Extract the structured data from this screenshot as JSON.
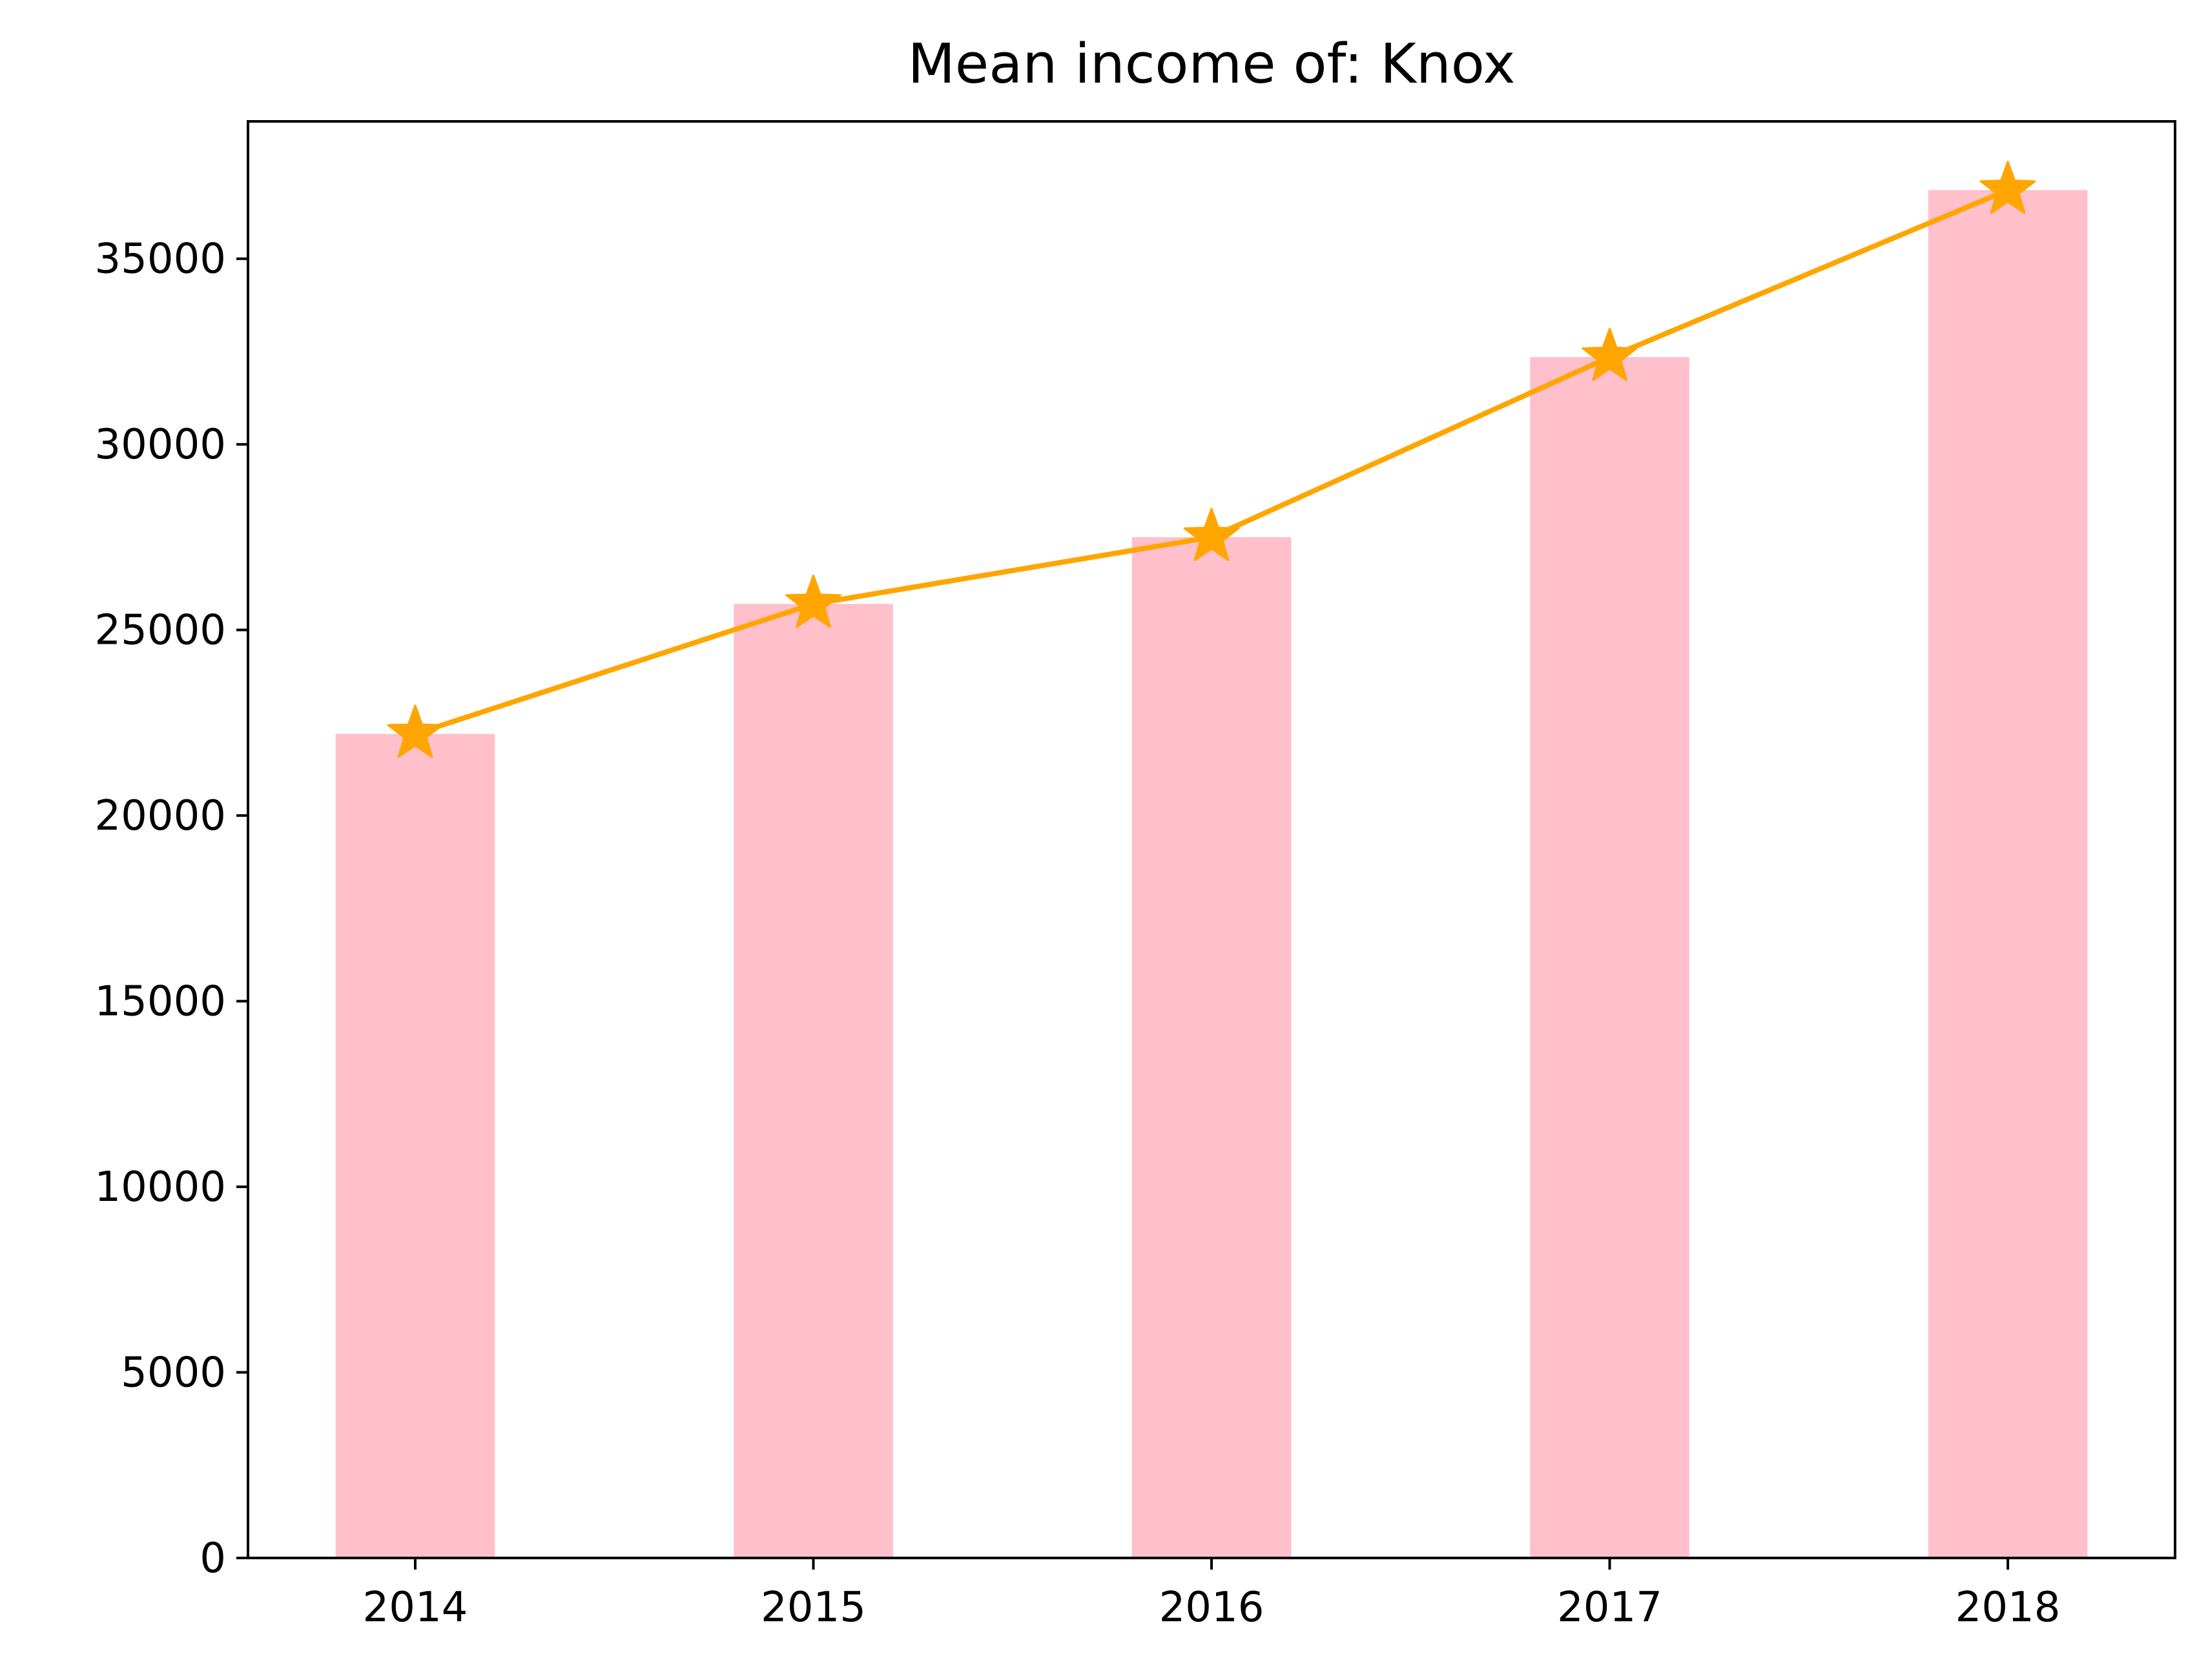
{
  "chart_data": {
    "type": "bar",
    "title": "Mean income of: Knox",
    "xlabel": "",
    "ylabel": "",
    "categories": [
      "2014",
      "2015",
      "2016",
      "2017",
      "2018"
    ],
    "series": [
      {
        "type": "bar",
        "values": [
          22200,
          25700,
          27500,
          32350,
          36850
        ]
      },
      {
        "type": "line",
        "marker": "star",
        "values": [
          22200,
          25700,
          27500,
          32350,
          36850
        ]
      }
    ],
    "ylim": [
      0,
      38700
    ],
    "yticks": [
      0,
      5000,
      10000,
      15000,
      20000,
      25000,
      30000,
      35000
    ],
    "ytick_labels": [
      "0",
      "5000",
      "10000",
      "15000",
      "20000",
      "25000",
      "30000",
      "35000"
    ],
    "grid": false,
    "legend": "none",
    "colors": {
      "bar": "#ffc0cb",
      "line": "#ffa500",
      "axes": "#000000"
    }
  }
}
